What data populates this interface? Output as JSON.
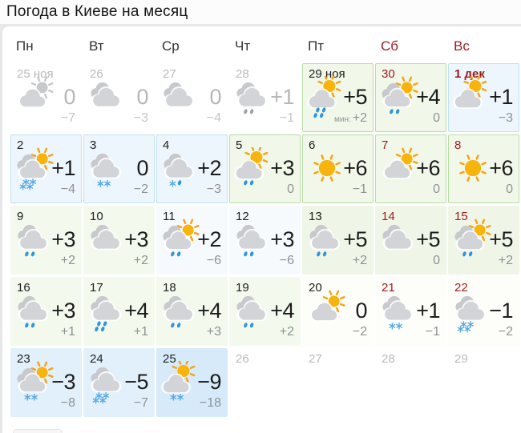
{
  "title": "Погода в Киеве на месяц",
  "colors": {
    "page_bg": "#e8e8e8",
    "card_bg": "#ffffff",
    "accent_weekend": "#9e1b1e",
    "text_primary": "#1c1c1c",
    "text_muted": "#8f9194",
    "text_past": "#b8babd",
    "sun": "#f8b30d",
    "sun_ray": "#f2a51c",
    "cloud": "#d3d4d7",
    "cloud_dark": "#c8c9cd",
    "rain": "#2f96dd",
    "snow": "#57a9e4",
    "grey_precip": "#9fa1a5",
    "cell_green_bg": "#f1f8ea",
    "cell_green_border": "#b8dda6",
    "cell_blue_bg": "#ecf6fc",
    "cell_blue_border": "#c0e1f2",
    "cell_pale_green_bg": "#f4f9ee",
    "cell_pale_green2_bg": "#eff6e8",
    "cell_pale_blue_bg": "#f6fafd",
    "cell_lblue_bg": "#e2f0fb",
    "cell_lblue2_bg": "#d7eafa"
  },
  "weekdays": [
    {
      "label": "Пн",
      "weekend": false
    },
    {
      "label": "Вт",
      "weekend": false
    },
    {
      "label": "Ср",
      "weekend": false
    },
    {
      "label": "Чт",
      "weekend": false
    },
    {
      "label": "Пт",
      "weekend": false
    },
    {
      "label": "Сб",
      "weekend": true
    },
    {
      "label": "Вс",
      "weekend": true
    }
  ],
  "days": [
    {
      "date": "25 ноя",
      "variant": "past",
      "icon": {
        "sun": "behind",
        "clouds": 1,
        "precip": null,
        "grey": true
      },
      "high": "0",
      "low": "−7"
    },
    {
      "date": "26",
      "variant": "past",
      "icon": {
        "sun": null,
        "clouds": 2,
        "precip": null,
        "grey": true
      },
      "high": "0",
      "low": "−3"
    },
    {
      "date": "27",
      "variant": "past",
      "icon": {
        "sun": null,
        "clouds": 2,
        "precip": null,
        "grey": true
      },
      "high": "0",
      "low": "−4"
    },
    {
      "date": "28",
      "variant": "past",
      "icon": {
        "sun": null,
        "clouds": 2,
        "precip": "rain2",
        "grey": true
      },
      "high": "+1",
      "low": "−1"
    },
    {
      "date": "29 ноя",
      "variant": "green",
      "icon": {
        "sun": "top",
        "clouds": 1,
        "precip": "rain4",
        "grey": false
      },
      "high": "+5",
      "low": "+2",
      "low_prefix": "мин:"
    },
    {
      "date": "30",
      "variant": "green",
      "weekend": true,
      "icon": {
        "sun": "behind",
        "clouds": 2,
        "precip": "rain2",
        "grey": false
      },
      "high": "+4",
      "low": "0"
    },
    {
      "date": "1 дек",
      "variant": "blue",
      "weekend": true,
      "bold_date": true,
      "icon": {
        "sun": "top",
        "clouds": 1,
        "precip": null,
        "grey": false
      },
      "high": "+1",
      "low": "−3"
    },
    {
      "date": "2",
      "variant": "blue",
      "icon": {
        "sun": "behind",
        "clouds": 2,
        "precip": "snow4",
        "grey": false
      },
      "high": "+1",
      "low": "−4"
    },
    {
      "date": "3",
      "variant": "blue",
      "icon": {
        "sun": null,
        "clouds": 2,
        "precip": "snow2",
        "grey": false
      },
      "high": "0",
      "low": "−2"
    },
    {
      "date": "4",
      "variant": "blue",
      "icon": {
        "sun": null,
        "clouds": 2,
        "precip": "snowrain",
        "grey": false
      },
      "high": "+2",
      "low": "−3"
    },
    {
      "date": "5",
      "variant": "green",
      "icon": {
        "sun": "top",
        "clouds": 1,
        "precip": "rain2",
        "grey": false
      },
      "high": "+3",
      "low": "0"
    },
    {
      "date": "6",
      "variant": "green",
      "icon": {
        "sun": "full",
        "clouds": 0,
        "precip": null,
        "grey": false
      },
      "high": "+6",
      "low": "−1"
    },
    {
      "date": "7",
      "variant": "green",
      "weekend": true,
      "icon": {
        "sun": "behind",
        "clouds": 1,
        "precip": null,
        "grey": false
      },
      "high": "+6",
      "low": "0"
    },
    {
      "date": "8",
      "variant": "green",
      "weekend": true,
      "icon": {
        "sun": "full",
        "clouds": 0,
        "precip": null,
        "grey": false
      },
      "high": "+6",
      "low": "0"
    },
    {
      "date": "9",
      "variant": "pale-green",
      "icon": {
        "sun": null,
        "clouds": 2,
        "precip": "rain2",
        "grey": false
      },
      "high": "+3",
      "low": "+2"
    },
    {
      "date": "10",
      "variant": "pale-green",
      "icon": {
        "sun": null,
        "clouds": 2,
        "precip": null,
        "grey": false
      },
      "high": "+3",
      "low": "+2"
    },
    {
      "date": "11",
      "variant": "pale-blue",
      "icon": {
        "sun": "behind",
        "clouds": 2,
        "precip": "rain2",
        "grey": false
      },
      "high": "+2",
      "low": "−6"
    },
    {
      "date": "12",
      "variant": "pale-blue",
      "icon": {
        "sun": null,
        "clouds": 2,
        "precip": "rain2",
        "grey": false
      },
      "high": "+3",
      "low": "−6"
    },
    {
      "date": "13",
      "variant": "pale-green2",
      "icon": {
        "sun": null,
        "clouds": 2,
        "precip": "rain2",
        "grey": false
      },
      "high": "+5",
      "low": "+2"
    },
    {
      "date": "14",
      "variant": "pale-green2",
      "weekend": true,
      "icon": {
        "sun": null,
        "clouds": 2,
        "precip": null,
        "grey": false
      },
      "high": "+5",
      "low": "0"
    },
    {
      "date": "15",
      "variant": "pale-green2",
      "weekend": true,
      "icon": {
        "sun": "behind",
        "clouds": 2,
        "precip": "rain2",
        "grey": false
      },
      "high": "+5",
      "low": "+2"
    },
    {
      "date": "16",
      "variant": "pale-green",
      "icon": {
        "sun": null,
        "clouds": 2,
        "precip": "rain2",
        "grey": false
      },
      "high": "+3",
      "low": "+1"
    },
    {
      "date": "17",
      "variant": "pale-green",
      "icon": {
        "sun": null,
        "clouds": 2,
        "precip": "rain4",
        "grey": false
      },
      "high": "+4",
      "low": "+1"
    },
    {
      "date": "18",
      "variant": "pale-green",
      "icon": {
        "sun": null,
        "clouds": 2,
        "precip": "rain2",
        "grey": false
      },
      "high": "+4",
      "low": "+3"
    },
    {
      "date": "19",
      "variant": "pale-green",
      "icon": {
        "sun": null,
        "clouds": 2,
        "precip": "rain2",
        "grey": false
      },
      "high": "+4",
      "low": "+2"
    },
    {
      "date": "20",
      "variant": "white",
      "icon": {
        "sun": "behind",
        "clouds": 1,
        "precip": null,
        "grey": false
      },
      "high": "0",
      "low": "−2"
    },
    {
      "date": "21",
      "variant": "white",
      "weekend": true,
      "icon": {
        "sun": null,
        "clouds": 2,
        "precip": "snow2",
        "grey": false
      },
      "high": "+1",
      "low": "−1"
    },
    {
      "date": "22",
      "variant": "white",
      "weekend": true,
      "icon": {
        "sun": null,
        "clouds": 2,
        "precip": "snow4",
        "grey": false
      },
      "high": "−1",
      "low": "−2"
    },
    {
      "date": "23",
      "variant": "lblue",
      "icon": {
        "sun": "behind",
        "clouds": 2,
        "precip": "snow2",
        "grey": false
      },
      "high": "−3",
      "low": "−8"
    },
    {
      "date": "24",
      "variant": "lblue",
      "icon": {
        "sun": null,
        "clouds": 2,
        "precip": "snow4",
        "grey": false
      },
      "high": "−5",
      "low": "−7"
    },
    {
      "date": "25",
      "variant": "lblue2",
      "icon": {
        "sun": "top",
        "clouds": 1,
        "precip": "snow2",
        "grey": false
      },
      "high": "−9",
      "low": "−18"
    },
    {
      "date": "26",
      "variant": "out"
    },
    {
      "date": "27",
      "variant": "out"
    },
    {
      "date": "28",
      "variant": "out"
    },
    {
      "date": "29",
      "variant": "out"
    }
  ]
}
